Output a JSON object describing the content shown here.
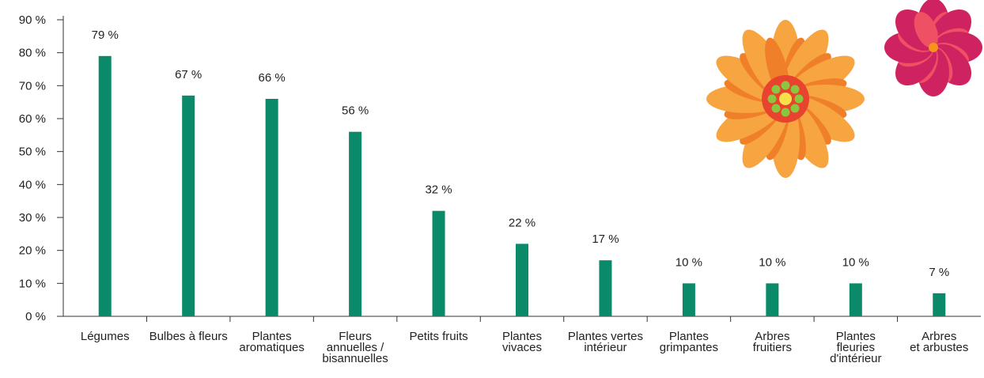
{
  "chart_data": {
    "type": "bar",
    "categories": [
      "Légumes",
      "Bulbes à fleurs",
      "Plantes\naromatiques",
      "Fleurs\nannuelles /\nbisannuelles",
      "Petits fruits",
      "Plantes\nvivaces",
      "Plantes vertes\nintérieur",
      "Plantes\ngrimpantes",
      "Arbres\nfruitiers",
      "Plantes\nfleuries\nd'intérieur",
      "Arbres\net arbustes"
    ],
    "values": [
      79,
      67,
      66,
      56,
      32,
      22,
      17,
      10,
      10,
      10,
      7
    ],
    "value_labels": [
      "79 %",
      "67 %",
      "66 %",
      "56 %",
      "32 %",
      "22 %",
      "17 %",
      "10 %",
      "10 %",
      "10 %",
      "7 %"
    ],
    "color": "#0a8a68",
    "ylim": [
      0,
      90
    ],
    "yticks": [
      {
        "value": 0,
        "label": "0 %"
      },
      {
        "value": 10,
        "label": "10 %"
      },
      {
        "value": 20,
        "label": "20 %"
      },
      {
        "value": 30,
        "label": "30 %"
      },
      {
        "value": 40,
        "label": "40 %"
      },
      {
        "value": 50,
        "label": "50 %"
      },
      {
        "value": 60,
        "label": "60 %"
      },
      {
        "value": 70,
        "label": "70 %"
      },
      {
        "value": 80,
        "label": "80 %"
      },
      {
        "value": 90,
        "label": "90 %"
      }
    ],
    "grid": false
  }
}
